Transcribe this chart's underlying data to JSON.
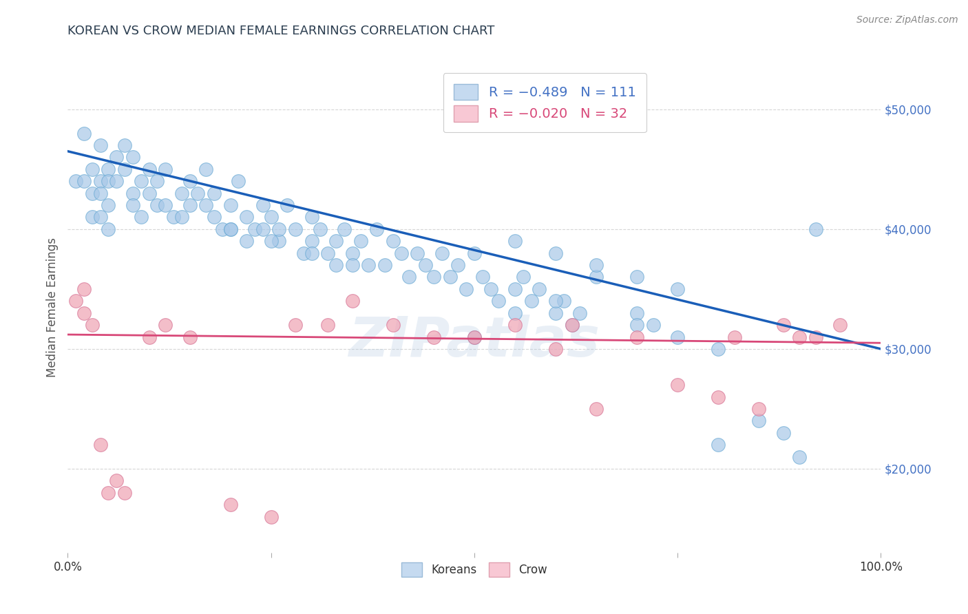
{
  "title": "KOREAN VS CROW MEDIAN FEMALE EARNINGS CORRELATION CHART",
  "source": "Source: ZipAtlas.com",
  "ylabel": "Median Female Earnings",
  "xlim": [
    0,
    1
  ],
  "ylim": [
    13000,
    54000
  ],
  "yticks": [
    20000,
    30000,
    40000,
    50000
  ],
  "ytick_labels": [
    "$20,000",
    "$30,000",
    "$40,000",
    "$50,000"
  ],
  "xticks": [
    0.0,
    0.25,
    0.5,
    0.75,
    1.0
  ],
  "xtick_labels": [
    "0.0%",
    "",
    "",
    "",
    "100.0%"
  ],
  "watermark": "ZIPatlas",
  "blue_color": "#a8c8e8",
  "blue_edge": "#6aaad4",
  "pink_color": "#f0a8b8",
  "pink_edge": "#d87898",
  "blue_line_color": "#1a5eb8",
  "pink_line_color": "#d84878",
  "background_color": "#ffffff",
  "grid_color": "#cccccc",
  "axis_label_color": "#555555",
  "right_tick_color": "#4472c4",
  "title_color": "#2c3e50",
  "blue_scatter_x": [
    0.01,
    0.02,
    0.02,
    0.03,
    0.03,
    0.03,
    0.04,
    0.04,
    0.04,
    0.04,
    0.05,
    0.05,
    0.05,
    0.05,
    0.06,
    0.06,
    0.07,
    0.07,
    0.08,
    0.08,
    0.08,
    0.09,
    0.09,
    0.1,
    0.1,
    0.11,
    0.11,
    0.12,
    0.12,
    0.13,
    0.14,
    0.14,
    0.15,
    0.15,
    0.16,
    0.17,
    0.17,
    0.18,
    0.18,
    0.19,
    0.2,
    0.2,
    0.21,
    0.22,
    0.22,
    0.23,
    0.24,
    0.24,
    0.25,
    0.26,
    0.26,
    0.27,
    0.28,
    0.29,
    0.3,
    0.3,
    0.31,
    0.32,
    0.33,
    0.33,
    0.34,
    0.35,
    0.36,
    0.37,
    0.38,
    0.39,
    0.4,
    0.41,
    0.42,
    0.43,
    0.44,
    0.45,
    0.46,
    0.47,
    0.48,
    0.49,
    0.5,
    0.51,
    0.52,
    0.53,
    0.55,
    0.56,
    0.57,
    0.58,
    0.6,
    0.61,
    0.62,
    0.63,
    0.65,
    0.7,
    0.72,
    0.75,
    0.8,
    0.85,
    0.88,
    0.9,
    0.92,
    0.55,
    0.6,
    0.65,
    0.7,
    0.75,
    0.55,
    0.6,
    0.7,
    0.8,
    0.5,
    0.2,
    0.25,
    0.3,
    0.35
  ],
  "blue_scatter_y": [
    44000,
    48000,
    44000,
    45000,
    43000,
    41000,
    47000,
    44000,
    43000,
    41000,
    45000,
    44000,
    42000,
    40000,
    46000,
    44000,
    47000,
    45000,
    46000,
    43000,
    42000,
    44000,
    41000,
    45000,
    43000,
    44000,
    42000,
    45000,
    42000,
    41000,
    43000,
    41000,
    44000,
    42000,
    43000,
    45000,
    42000,
    41000,
    43000,
    40000,
    42000,
    40000,
    44000,
    41000,
    39000,
    40000,
    42000,
    40000,
    41000,
    39000,
    40000,
    42000,
    40000,
    38000,
    41000,
    39000,
    40000,
    38000,
    39000,
    37000,
    40000,
    38000,
    39000,
    37000,
    40000,
    37000,
    39000,
    38000,
    36000,
    38000,
    37000,
    36000,
    38000,
    36000,
    37000,
    35000,
    38000,
    36000,
    35000,
    34000,
    33000,
    36000,
    34000,
    35000,
    33000,
    34000,
    32000,
    33000,
    36000,
    33000,
    32000,
    31000,
    22000,
    24000,
    23000,
    21000,
    40000,
    39000,
    38000,
    37000,
    36000,
    35000,
    35000,
    34000,
    32000,
    30000,
    31000,
    40000,
    39000,
    38000,
    37000
  ],
  "pink_scatter_x": [
    0.01,
    0.02,
    0.02,
    0.03,
    0.04,
    0.05,
    0.06,
    0.07,
    0.1,
    0.12,
    0.15,
    0.2,
    0.25,
    0.28,
    0.32,
    0.35,
    0.4,
    0.45,
    0.5,
    0.55,
    0.6,
    0.62,
    0.65,
    0.7,
    0.75,
    0.8,
    0.82,
    0.85,
    0.88,
    0.9,
    0.92,
    0.95
  ],
  "pink_scatter_y": [
    34000,
    35000,
    33000,
    32000,
    22000,
    18000,
    19000,
    18000,
    31000,
    32000,
    31000,
    17000,
    16000,
    32000,
    32000,
    34000,
    32000,
    31000,
    31000,
    32000,
    30000,
    32000,
    25000,
    31000,
    27000,
    26000,
    31000,
    25000,
    32000,
    31000,
    31000,
    32000
  ],
  "blue_line_x0": 0.0,
  "blue_line_y0": 46500,
  "blue_line_x1": 1.0,
  "blue_line_y1": 30000,
  "pink_line_x0": 0.0,
  "pink_line_y0": 31200,
  "pink_line_x1": 1.0,
  "pink_line_y1": 30500
}
